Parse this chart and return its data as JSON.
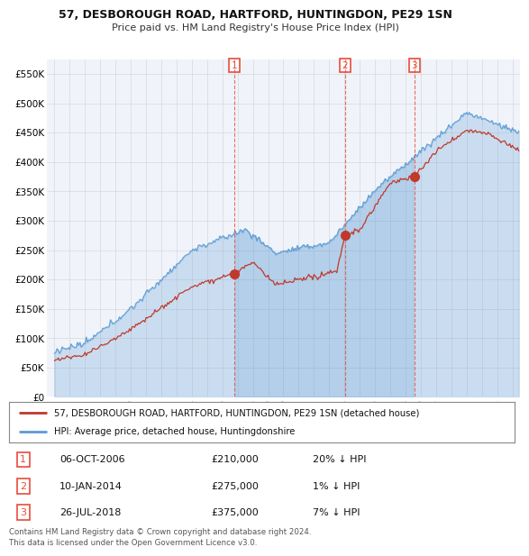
{
  "title": "57, DESBOROUGH ROAD, HARTFORD, HUNTINGDON, PE29 1SN",
  "subtitle": "Price paid vs. HM Land Registry's House Price Index (HPI)",
  "legend_line1": "57, DESBOROUGH ROAD, HARTFORD, HUNTINGDON, PE29 1SN (detached house)",
  "legend_line2": "HPI: Average price, detached house, Huntingdonshire",
  "transactions": [
    {
      "num": 1,
      "date": "06-OCT-2006",
      "price": 210000,
      "hpi_diff": "20% ↓ HPI",
      "year": 2006.76
    },
    {
      "num": 2,
      "date": "10-JAN-2014",
      "price": 275000,
      "hpi_diff": "1% ↓ HPI",
      "year": 2014.03
    },
    {
      "num": 3,
      "date": "26-JUL-2018",
      "price": 375000,
      "hpi_diff": "7% ↓ HPI",
      "year": 2018.57
    }
  ],
  "footer": "Contains HM Land Registry data © Crown copyright and database right 2024.\nThis data is licensed under the Open Government Licence v3.0.",
  "hpi_color": "#5b9bd5",
  "hpi_fill_color": "#ddeeff",
  "price_color": "#c0392b",
  "marker_color": "#c0392b",
  "vline_color": "#e74c3c",
  "background_color": "#ffffff",
  "chart_bg_color": "#f0f4fa",
  "grid_color": "#cccccc",
  "ylim": [
    0,
    575000
  ],
  "xlim_start": 1994.5,
  "xlim_end": 2025.5
}
